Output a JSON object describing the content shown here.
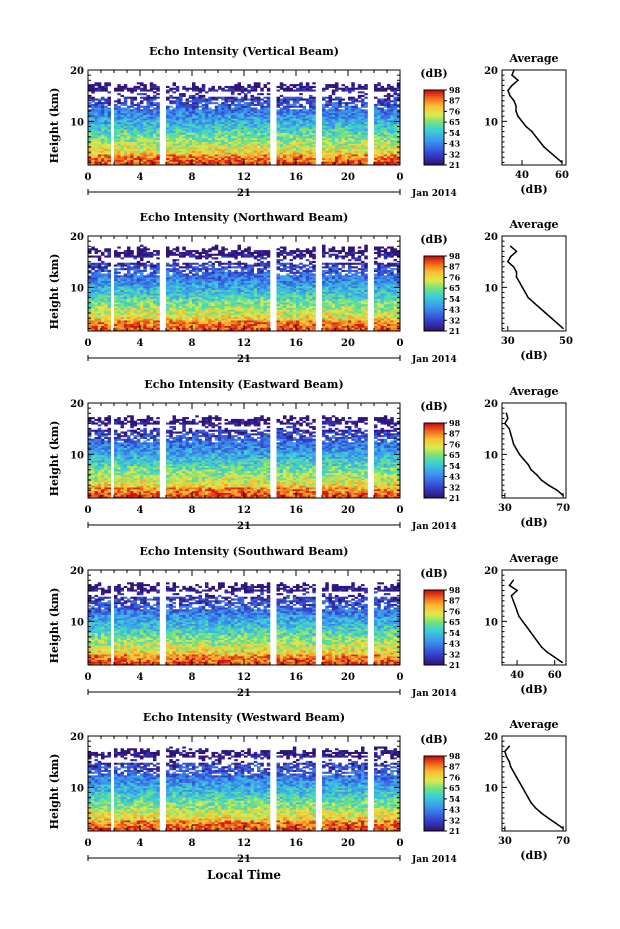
{
  "x_axis_label": "Local Time",
  "chart_data": [
    {
      "type": "heatmap",
      "title": "Echo Intensity (Vertical Beam)",
      "ylabel": "Height (km)",
      "xlabel": "Local Time",
      "x_ticks": [
        "0",
        "4",
        "8",
        "12",
        "16",
        "20",
        "0"
      ],
      "date_label": "21",
      "month_label": "Jan 2014",
      "y_ticks": [
        "10",
        "20"
      ],
      "xlim": [
        0,
        24
      ],
      "ylim": [
        1.5,
        20
      ],
      "data_gaps_hours": [
        [
          1.8,
          2.0
        ],
        [
          5.5,
          5.8
        ],
        [
          14.0,
          14.3
        ],
        [
          17.6,
          18.0
        ],
        [
          21.7,
          22.0
        ]
      ],
      "colorbar": {
        "unit_label": "(dB)",
        "ticks": [
          "98",
          "87",
          "76",
          "65",
          "54",
          "43",
          "32",
          "21"
        ]
      },
      "profile": {
        "title": "Average",
        "xlabel": "(dB)",
        "x_ticks": [
          "40",
          "60"
        ],
        "xlim": [
          30,
          62
        ],
        "y_ticks": [
          "10",
          "20"
        ],
        "heights": [
          2,
          3,
          4,
          5,
          6,
          7,
          8,
          9,
          10,
          11,
          12,
          13,
          14,
          15,
          16,
          17,
          18,
          19,
          20
        ],
        "values": [
          60,
          57,
          54,
          51,
          49,
          47,
          45,
          42,
          40,
          38,
          37,
          37,
          36,
          34,
          33,
          35,
          38,
          35,
          36
        ]
      }
    },
    {
      "type": "heatmap",
      "title": "Echo Intensity (Northward Beam)",
      "ylabel": "Height (km)",
      "xlabel": "Local Time",
      "x_ticks": [
        "0",
        "4",
        "8",
        "12",
        "16",
        "20",
        "0"
      ],
      "date_label": "21",
      "month_label": "Jan 2014",
      "y_ticks": [
        "10",
        "20"
      ],
      "xlim": [
        0,
        24
      ],
      "ylim": [
        1.5,
        20
      ],
      "data_gaps_hours": [
        [
          1.8,
          2.0
        ],
        [
          5.5,
          5.8
        ],
        [
          14.0,
          14.3
        ],
        [
          17.6,
          18.0
        ],
        [
          21.7,
          22.0
        ]
      ],
      "colorbar": {
        "unit_label": "(dB)",
        "ticks": [
          "98",
          "87",
          "76",
          "65",
          "54",
          "43",
          "32",
          "21"
        ]
      },
      "profile": {
        "title": "Average",
        "xlabel": "(dB)",
        "x_ticks": [
          "30",
          "50"
        ],
        "xlim": [
          28,
          50
        ],
        "y_ticks": [
          "10",
          "20"
        ],
        "heights": [
          2,
          3,
          4,
          5,
          6,
          7,
          8,
          9,
          10,
          11,
          12,
          13,
          14,
          15,
          16,
          17,
          18
        ],
        "values": [
          49,
          47,
          45,
          43,
          41,
          39,
          37,
          36,
          35,
          34,
          33,
          33,
          32,
          30,
          31,
          33,
          31
        ]
      }
    },
    {
      "type": "heatmap",
      "title": "Echo Intensity (Eastward Beam)",
      "ylabel": "Height (km)",
      "xlabel": "Local Time",
      "x_ticks": [
        "0",
        "4",
        "8",
        "12",
        "16",
        "20",
        "0"
      ],
      "date_label": "21",
      "month_label": "Jan 2014",
      "y_ticks": [
        "10",
        "20"
      ],
      "xlim": [
        0,
        24
      ],
      "ylim": [
        1.5,
        20
      ],
      "data_gaps_hours": [
        [
          1.8,
          2.0
        ],
        [
          5.5,
          5.8
        ],
        [
          14.0,
          14.3
        ],
        [
          17.6,
          18.0
        ],
        [
          21.7,
          22.0
        ]
      ],
      "colorbar": {
        "unit_label": "(dB)",
        "ticks": [
          "98",
          "87",
          "76",
          "65",
          "54",
          "43",
          "32",
          "21"
        ]
      },
      "profile": {
        "title": "Average",
        "xlabel": "(dB)",
        "x_ticks": [
          "30",
          "70"
        ],
        "xlim": [
          28,
          72
        ],
        "y_ticks": [
          "10",
          "20"
        ],
        "heights": [
          2,
          3,
          4,
          5,
          6,
          7,
          8,
          9,
          10,
          11,
          12,
          13,
          14,
          15,
          16,
          17,
          18
        ],
        "values": [
          70,
          66,
          60,
          55,
          52,
          48,
          46,
          43,
          40,
          38,
          36,
          35,
          34,
          33,
          30,
          32,
          31
        ]
      }
    },
    {
      "type": "heatmap",
      "title": "Echo Intensity (Southward Beam)",
      "ylabel": "Height (km)",
      "xlabel": "Local Time",
      "x_ticks": [
        "0",
        "4",
        "8",
        "12",
        "16",
        "20",
        "0"
      ],
      "date_label": "21",
      "month_label": "Jan 2014",
      "y_ticks": [
        "10",
        "20"
      ],
      "xlim": [
        0,
        24
      ],
      "ylim": [
        1.5,
        20
      ],
      "data_gaps_hours": [
        [
          1.8,
          2.0
        ],
        [
          5.5,
          5.8
        ],
        [
          14.0,
          14.3
        ],
        [
          17.6,
          18.0
        ],
        [
          21.7,
          22.0
        ]
      ],
      "colorbar": {
        "unit_label": "(dB)",
        "ticks": [
          "98",
          "87",
          "76",
          "65",
          "54",
          "43",
          "32",
          "21"
        ]
      },
      "profile": {
        "title": "Average",
        "xlabel": "(dB)",
        "x_ticks": [
          "40",
          "60"
        ],
        "xlim": [
          32,
          66
        ],
        "y_ticks": [
          "10",
          "20"
        ],
        "heights": [
          2,
          3,
          4,
          5,
          6,
          7,
          8,
          9,
          10,
          11,
          12,
          13,
          14,
          15,
          16,
          17,
          18
        ],
        "values": [
          64,
          60,
          56,
          53,
          51,
          49,
          47,
          45,
          43,
          41,
          40,
          39,
          38,
          37,
          40,
          36,
          38
        ]
      }
    },
    {
      "type": "heatmap",
      "title": "Echo Intensity (Westward Beam)",
      "ylabel": "Height (km)",
      "xlabel": "Local Time",
      "x_ticks": [
        "0",
        "4",
        "8",
        "12",
        "16",
        "20",
        "0"
      ],
      "date_label": "21",
      "month_label": "Jan 2014",
      "y_ticks": [
        "10",
        "20"
      ],
      "xlim": [
        0,
        24
      ],
      "ylim": [
        1.5,
        20
      ],
      "data_gaps_hours": [
        [
          1.8,
          2.0
        ],
        [
          5.5,
          5.8
        ],
        [
          14.0,
          14.3
        ],
        [
          17.6,
          18.0
        ],
        [
          21.7,
          22.0
        ]
      ],
      "colorbar": {
        "unit_label": "(dB)",
        "ticks": [
          "98",
          "87",
          "76",
          "65",
          "54",
          "43",
          "32",
          "21"
        ]
      },
      "profile": {
        "title": "Average",
        "xlabel": "(dB)",
        "x_ticks": [
          "30",
          "70"
        ],
        "xlim": [
          28,
          72
        ],
        "y_ticks": [
          "10",
          "20"
        ],
        "heights": [
          2,
          3,
          4,
          5,
          6,
          7,
          8,
          9,
          10,
          11,
          12,
          13,
          14,
          15,
          16,
          17,
          18
        ],
        "values": [
          70,
          65,
          60,
          55,
          51,
          48,
          46,
          44,
          42,
          40,
          38,
          36,
          34,
          33,
          31,
          30,
          33
        ]
      }
    }
  ]
}
